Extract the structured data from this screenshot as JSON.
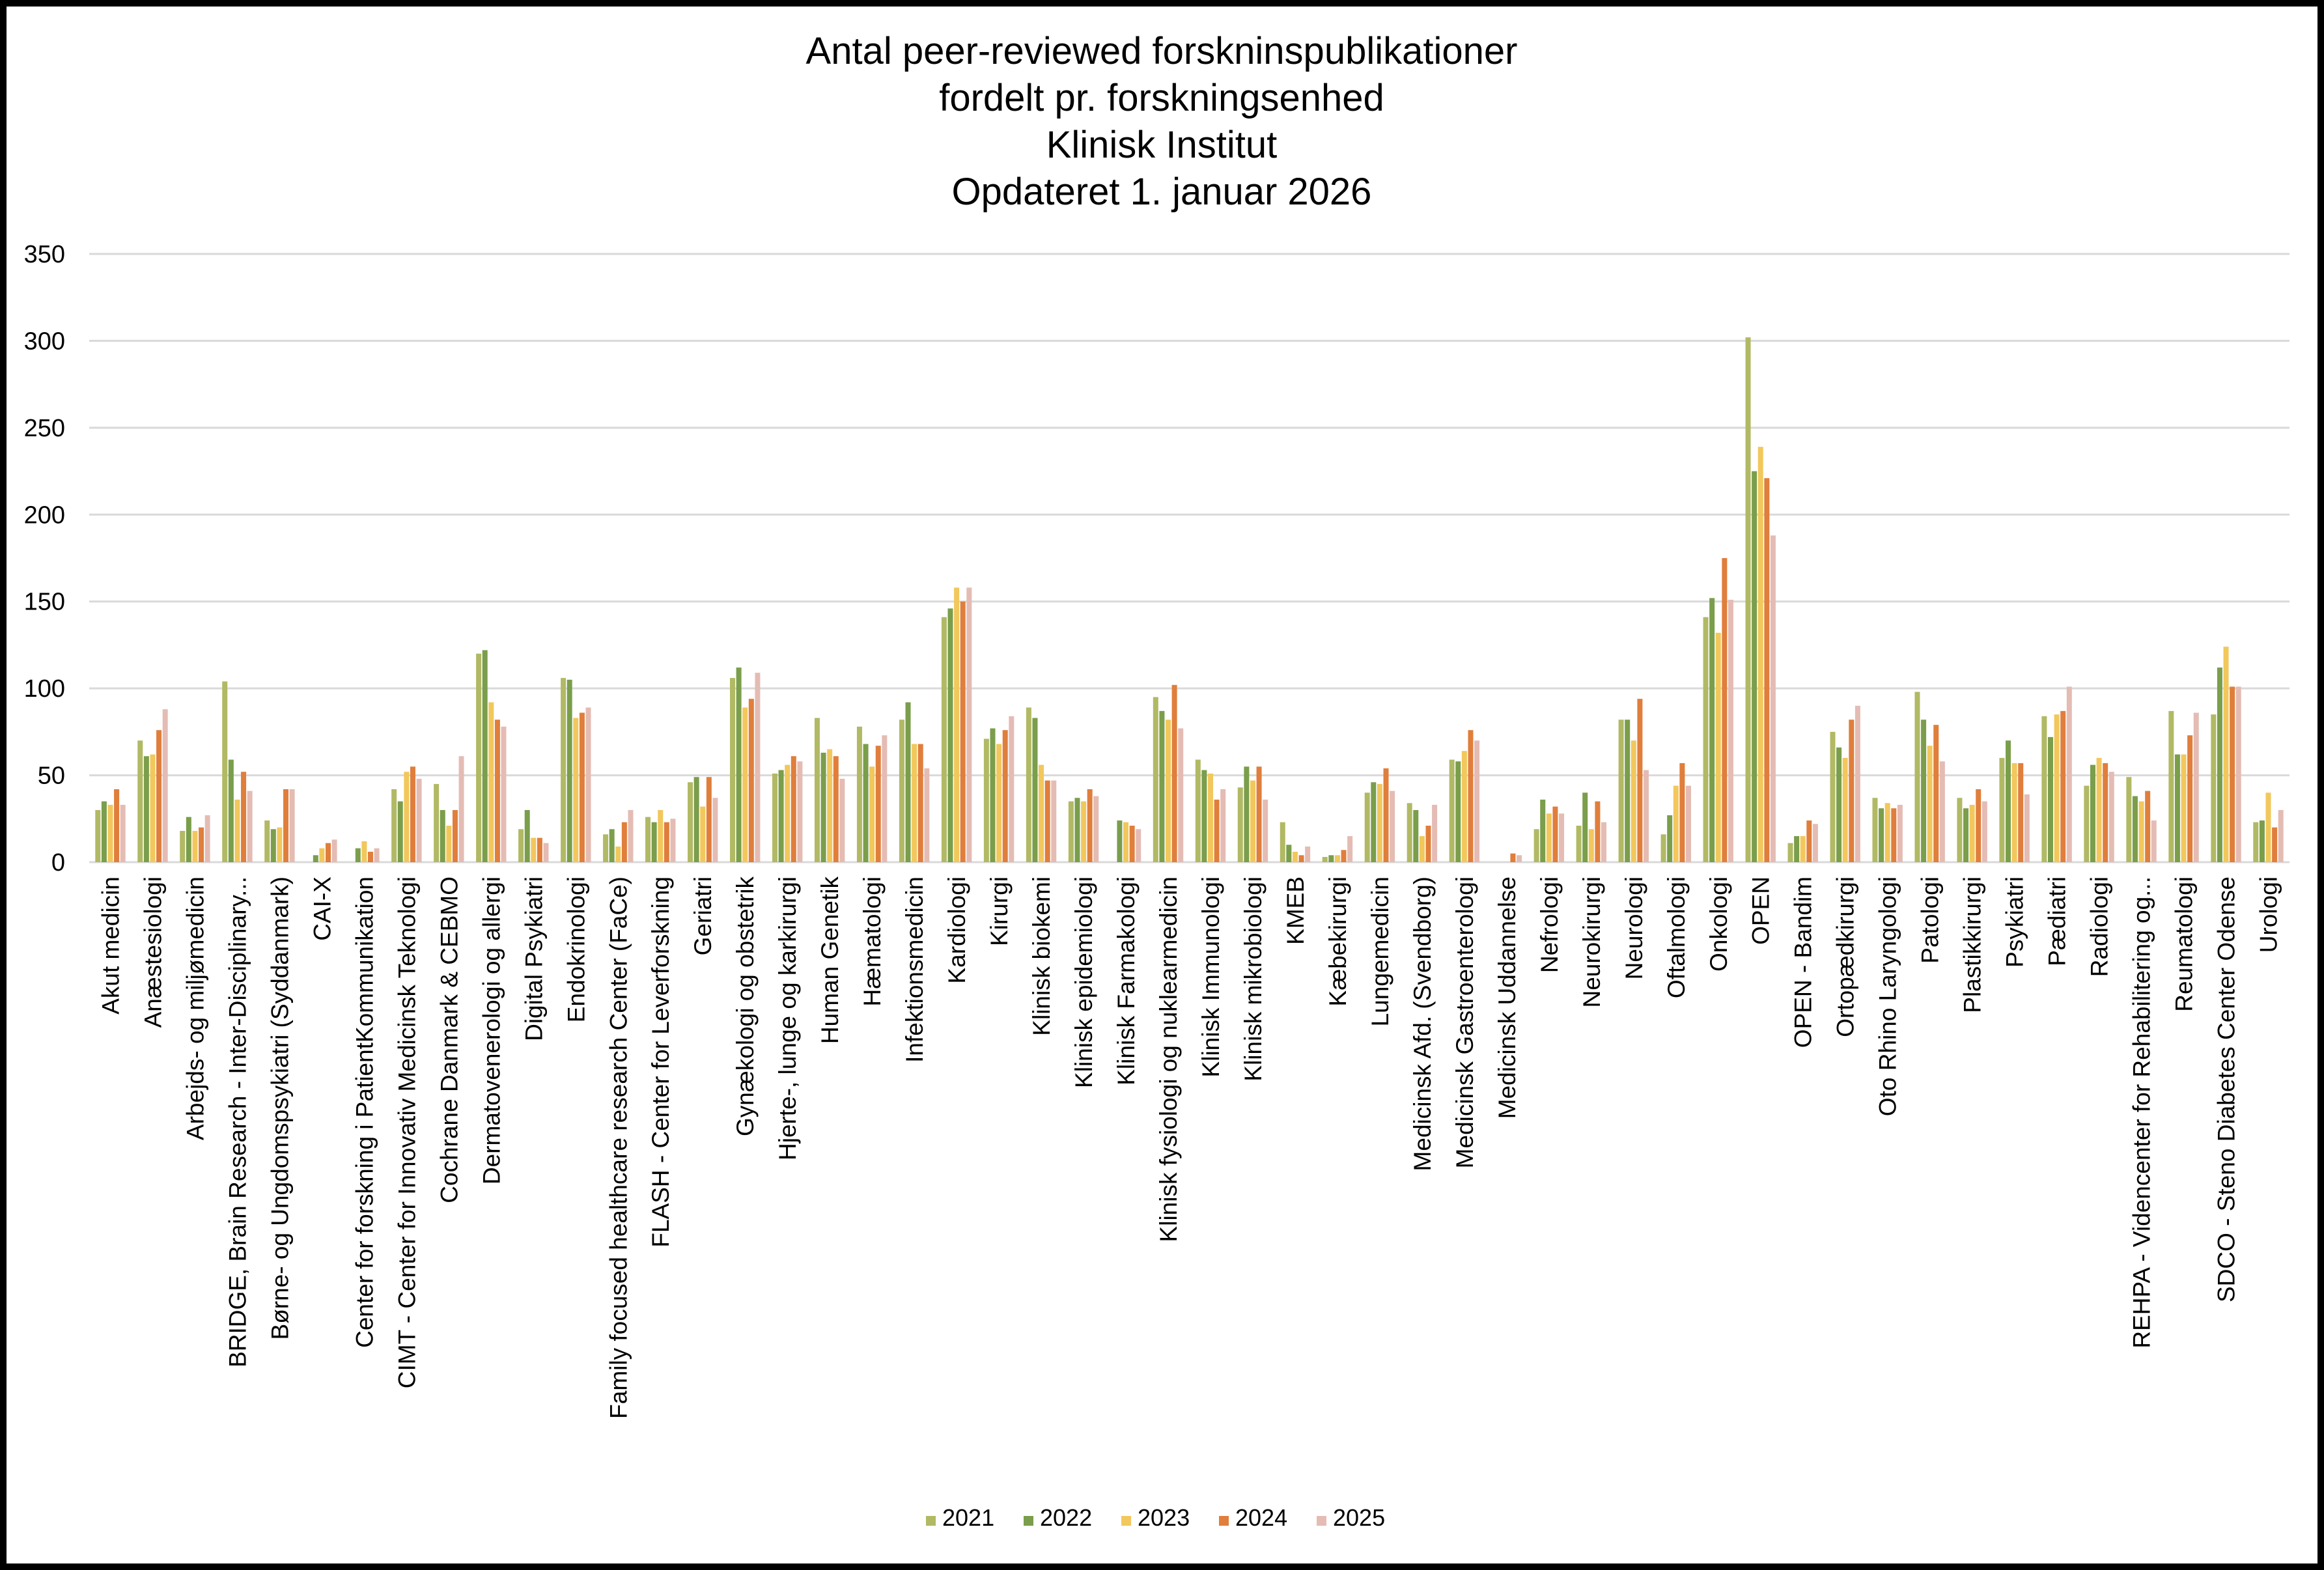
{
  "chart_data": {
    "type": "bar",
    "title": [
      "Antal peer-reviewed forskninspublikationer",
      "fordelt pr. forskningsenhed",
      "Klinisk Institut",
      "Opdateret 1. januar 2026"
    ],
    "xlabel": "",
    "ylabel": "",
    "ylim": [
      0,
      350
    ],
    "yticks": [
      0,
      50,
      100,
      150,
      200,
      250,
      300,
      350
    ],
    "grid": true,
    "legend_position": "bottom",
    "colors": {
      "2021": "#b1b964",
      "2022": "#7a9e4b",
      "2023": "#f2c75c",
      "2024": "#e07e3c",
      "2025": "#e4bcb4"
    },
    "categories": [
      "Akut medicin",
      "Anæstesiologi",
      "Arbejds- og miljømedicin",
      "BRIDGE, Brain Research - Inter-Disciplinary...",
      "Børne- og Ungdomspsykiatri (Syddanmark)",
      "CAI-X",
      "Center for forskning i PatientKommunikation",
      "CIMT - Center for Innovativ Medicinsk Teknologi",
      "Cochrane Danmark & CEBMO",
      "Dermatovenerologi og allergi",
      "Digital Psykiatri",
      "Endokrinologi",
      "Family focused healthcare research Center (FaCe)",
      "FLASH - Center for Leverforskning",
      "Geriatri",
      "Gynækologi og obstetrik",
      "Hjerte-, lunge og karkirurgi",
      "Human Genetik",
      "Hæmatologi",
      "Infektionsmedicin",
      "Kardiologi",
      "Kirurgi",
      "Klinisk biokemi",
      "Klinisk epidemiologi",
      "Klinisk Farmakologi",
      "Klinisk fysiologi og nuklearmedicin",
      "Klinisk Immunologi",
      "Klinisk mikrobiologi",
      "KMEB",
      "Kæbekirurgi",
      "Lungemedicin",
      "Medicinsk Afd. (Svendborg)",
      "Medicinsk Gastroenterologi",
      "Medicinsk Uddannelse",
      "Nefrologi",
      "Neurokirurgi",
      "Neurologi",
      "Oftalmologi",
      "Onkologi",
      "OPEN",
      "OPEN - Bandim",
      "Ortopædkirurgi",
      "Oto Rhino Laryngologi",
      "Patologi",
      "Plastikkirurgi",
      "Psykiatri",
      "Pædiatri",
      "Radiologi",
      "REHPA - Videncenter for Rehabilitering og...",
      "Reumatologi",
      "SDCO - Steno Diabetes Center Odense",
      "Urologi"
    ],
    "series": [
      {
        "name": "2021",
        "values": [
          30,
          70,
          18,
          104,
          24,
          0,
          0,
          42,
          45,
          120,
          19,
          106,
          16,
          26,
          46,
          106,
          51,
          83,
          78,
          82,
          141,
          71,
          89,
          35,
          0,
          95,
          59,
          43,
          23,
          3,
          40,
          34,
          59,
          0,
          19,
          21,
          82,
          16,
          141,
          302,
          11,
          75,
          37,
          98,
          37,
          60,
          84,
          44,
          49,
          87,
          85,
          23
        ]
      },
      {
        "name": "2022",
        "values": [
          35,
          61,
          26,
          59,
          19,
          4,
          8,
          35,
          30,
          122,
          30,
          105,
          19,
          23,
          49,
          112,
          53,
          63,
          68,
          92,
          146,
          77,
          83,
          37,
          24,
          87,
          53,
          55,
          10,
          4,
          46,
          30,
          58,
          0,
          36,
          40,
          82,
          27,
          152,
          225,
          15,
          66,
          31,
          82,
          31,
          70,
          72,
          56,
          38,
          62,
          112,
          24
        ]
      },
      {
        "name": "2023",
        "values": [
          33,
          62,
          18,
          36,
          20,
          8,
          12,
          52,
          21,
          92,
          14,
          83,
          9,
          30,
          32,
          89,
          56,
          65,
          55,
          68,
          158,
          68,
          56,
          35,
          23,
          82,
          51,
          47,
          6,
          4,
          45,
          15,
          64,
          0,
          28,
          19,
          70,
          44,
          132,
          239,
          15,
          60,
          34,
          67,
          33,
          57,
          85,
          60,
          35,
          62,
          124,
          40
        ]
      },
      {
        "name": "2024",
        "values": [
          42,
          76,
          20,
          52,
          42,
          11,
          6,
          55,
          30,
          82,
          14,
          86,
          23,
          23,
          49,
          94,
          61,
          61,
          67,
          68,
          150,
          76,
          47,
          42,
          21,
          102,
          36,
          55,
          4,
          7,
          54,
          21,
          76,
          5,
          32,
          35,
          94,
          57,
          175,
          221,
          24,
          82,
          31,
          79,
          42,
          57,
          87,
          57,
          41,
          73,
          101,
          20
        ]
      },
      {
        "name": "2025",
        "values": [
          33,
          88,
          27,
          41,
          42,
          13,
          8,
          48,
          61,
          78,
          11,
          89,
          30,
          25,
          37,
          109,
          58,
          48,
          73,
          54,
          158,
          84,
          47,
          38,
          19,
          77,
          42,
          36,
          9,
          15,
          41,
          33,
          70,
          4,
          28,
          23,
          53,
          44,
          151,
          188,
          22,
          90,
          33,
          58,
          35,
          39,
          101,
          52,
          24,
          86,
          101,
          30
        ]
      }
    ]
  }
}
